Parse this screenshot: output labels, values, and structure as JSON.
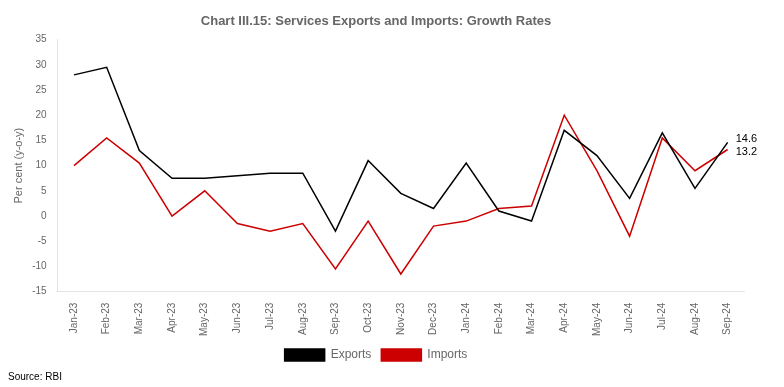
{
  "chart_data": {
    "type": "line",
    "title": "Chart III.15: Services Exports and Imports: Growth Rates",
    "ylabel": "Per cent (y-o-y)",
    "source": "Source: RBI",
    "categories": [
      "Jan-23",
      "Feb-23",
      "Mar-23",
      "Apr-23",
      "May-23",
      "Jun-23",
      "Jul-23",
      "Aug-23",
      "Sep-23",
      "Oct-23",
      "Nov-23",
      "Dec-23",
      "Jan-24",
      "Feb-24",
      "Mar-24",
      "Apr-24",
      "May-24",
      "Jun-24",
      "Jul-24",
      "Aug-24",
      "Sep-24"
    ],
    "series": [
      {
        "name": "Exports",
        "color": "#000000",
        "values": [
          28.0,
          29.5,
          13.0,
          7.5,
          7.5,
          8.0,
          8.5,
          8.5,
          -3.0,
          11.0,
          4.5,
          1.5,
          10.5,
          1.0,
          -1.0,
          17.0,
          12.0,
          3.5,
          16.5,
          5.5,
          14.6
        ]
      },
      {
        "name": "Imports",
        "color": "#cc0000",
        "values": [
          10.0,
          15.5,
          10.5,
          0.0,
          5.0,
          -1.5,
          -3.0,
          -1.5,
          -10.5,
          -1.0,
          -11.5,
          -2.0,
          -1.0,
          1.5,
          2.0,
          20.0,
          9.0,
          -4.0,
          15.5,
          9.0,
          13.2
        ]
      }
    ],
    "annotations": [
      {
        "text": "14.6",
        "x": "Sep-24",
        "y": 14.6
      },
      {
        "text": "13.2",
        "x": "Sep-24",
        "y": 13.2
      }
    ],
    "ylim": [
      -15,
      35
    ],
    "yticks": [
      -15,
      -10,
      -5,
      0,
      5,
      10,
      15,
      20,
      25,
      30,
      35
    ],
    "grid": false,
    "legend": "bottom",
    "marker": "none"
  }
}
